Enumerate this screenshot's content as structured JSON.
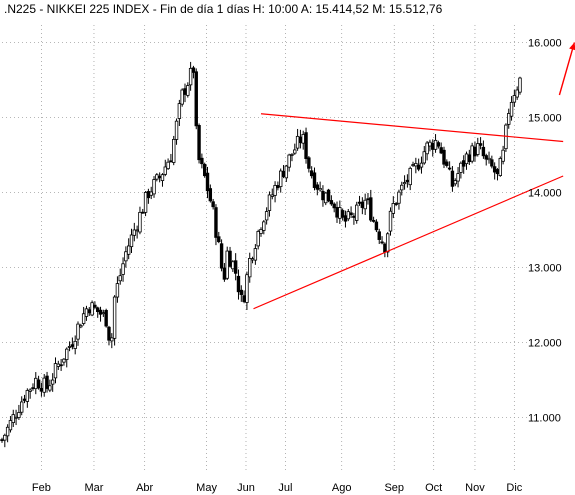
{
  "header": {
    "text": ".N225 - NIKKEI 225 INDEX - Fin de día 1 días  H: 10:00  A: 15.414,52  M: 15.512,76"
  },
  "chart_data": {
    "type": "candlestick",
    "title": ".N225 - NIKKEI 225 INDEX - Fin de día 1 días",
    "last_bar": {
      "H": "10:00",
      "A": "15.414,52",
      "M": "15.512,76"
    },
    "x_axis": {
      "labels": [
        "Feb",
        "Mar",
        "Abr",
        "May",
        "Jun",
        "Jul",
        "Ago",
        "Sep",
        "Oct",
        "Nov",
        "Dic"
      ],
      "day_positions": [
        21,
        49,
        76,
        109,
        130,
        151,
        181,
        209,
        230,
        252,
        273
      ],
      "range_days": [
        0,
        276
      ]
    },
    "y_axis": {
      "labels": [
        "11.000",
        "12.000",
        "13.000",
        "14.000",
        "15.000",
        "16.000"
      ],
      "values": [
        11000,
        12000,
        13000,
        14000,
        15000,
        16000
      ],
      "range": [
        10300,
        16300
      ],
      "position": "right"
    },
    "grid": true,
    "keypoints": [
      [
        0,
        10700
      ],
      [
        6,
        11000
      ],
      [
        12,
        11300
      ],
      [
        18,
        11500
      ],
      [
        24,
        11400
      ],
      [
        30,
        11700
      ],
      [
        37,
        12000
      ],
      [
        42,
        12300
      ],
      [
        46,
        12500
      ],
      [
        52,
        12400
      ],
      [
        56,
        12300
      ],
      [
        58,
        11900
      ],
      [
        60,
        12600
      ],
      [
        66,
        13200
      ],
      [
        72,
        13600
      ],
      [
        78,
        14000
      ],
      [
        84,
        14200
      ],
      [
        90,
        14500
      ],
      [
        96,
        15300
      ],
      [
        102,
        15650
      ],
      [
        104,
        14500
      ],
      [
        108,
        14200
      ],
      [
        112,
        13800
      ],
      [
        116,
        13200
      ],
      [
        118,
        12800
      ],
      [
        120,
        13200
      ],
      [
        124,
        13000
      ],
      [
        128,
        12500
      ],
      [
        132,
        13100
      ],
      [
        138,
        13600
      ],
      [
        146,
        14100
      ],
      [
        154,
        14500
      ],
      [
        160,
        14750
      ],
      [
        164,
        14300
      ],
      [
        170,
        14000
      ],
      [
        176,
        13900
      ],
      [
        182,
        13600
      ],
      [
        188,
        13700
      ],
      [
        194,
        13900
      ],
      [
        200,
        13500
      ],
      [
        204,
        13300
      ],
      [
        208,
        13800
      ],
      [
        214,
        14100
      ],
      [
        220,
        14300
      ],
      [
        226,
        14600
      ],
      [
        232,
        14700
      ],
      [
        236,
        14400
      ],
      [
        240,
        14100
      ],
      [
        244,
        14300
      ],
      [
        248,
        14500
      ],
      [
        254,
        14600
      ],
      [
        258,
        14400
      ],
      [
        262,
        14300
      ],
      [
        264,
        14200
      ],
      [
        267,
        14500
      ],
      [
        270,
        15100
      ],
      [
        272,
        15300
      ],
      [
        276,
        15500
      ]
    ],
    "trend_lines": [
      {
        "from": [
          138,
          15050
        ],
        "to": [
          299,
          14680
        ],
        "color": "#ff0000"
      },
      {
        "from": [
          134,
          12450
        ],
        "to": [
          299,
          14220
        ],
        "color": "#ff0000"
      }
    ],
    "arrow": {
      "from": [
        297,
        15300
      ],
      "to": [
        305,
        16000
      ],
      "color": "#ff0000"
    },
    "colors": {
      "up": "#ffffff",
      "down": "#000000",
      "wick": "#000000",
      "trend": "#ff0000"
    }
  }
}
